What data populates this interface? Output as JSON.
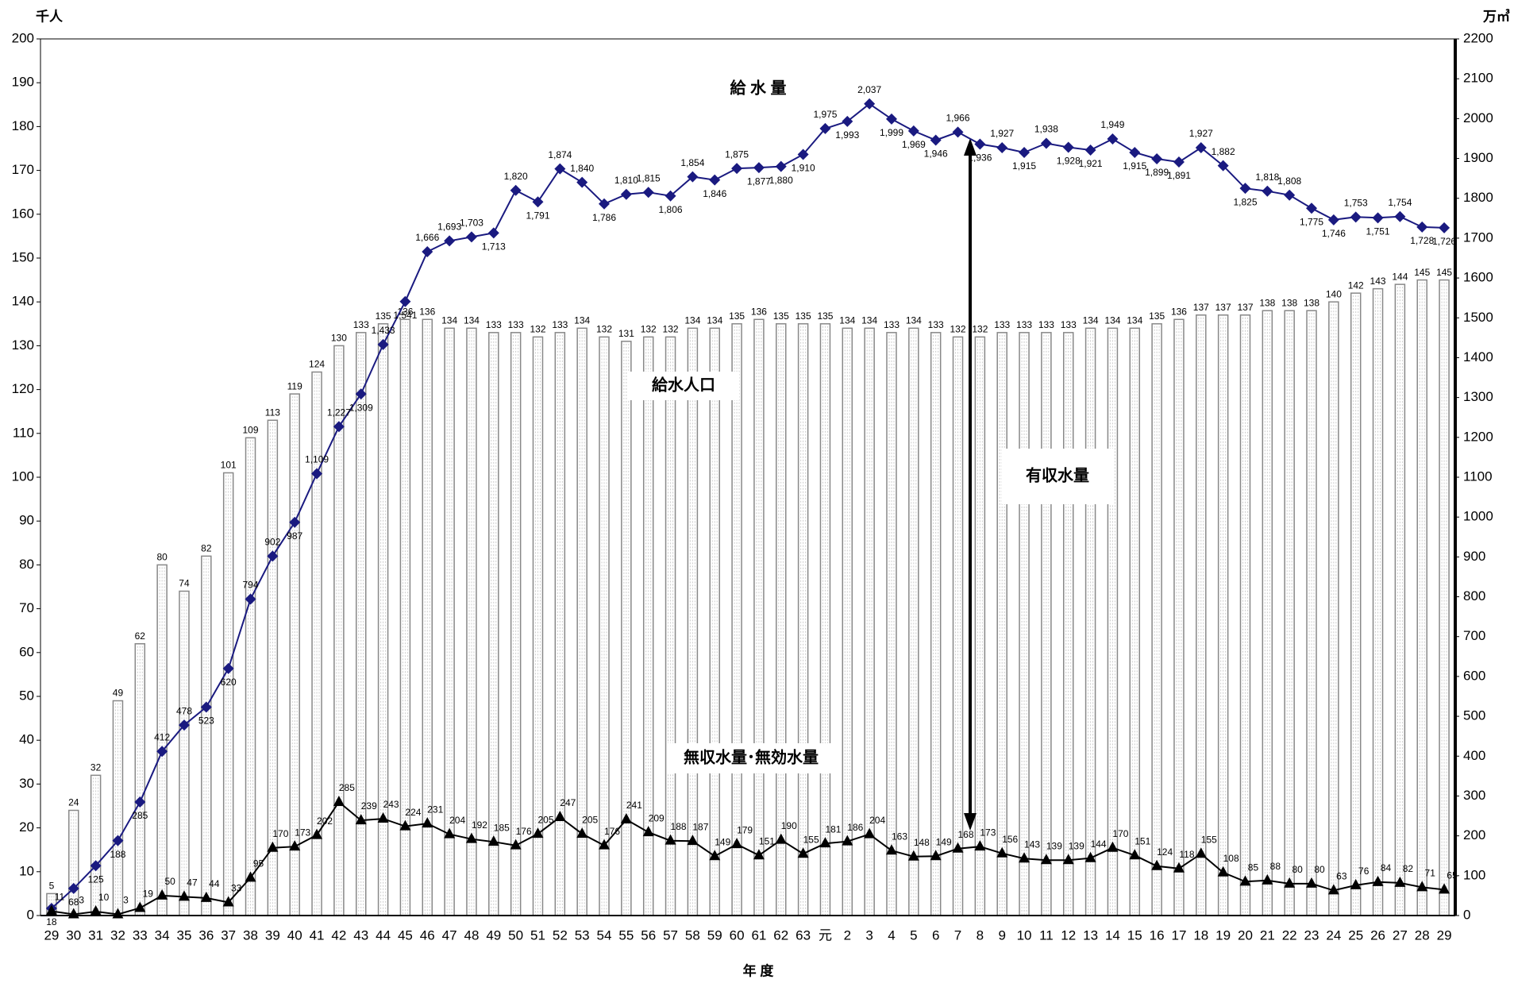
{
  "chart_data": {
    "type": "bar",
    "y_label": "千人",
    "y2_label": "万㎥",
    "x_label": "年 度",
    "annotations": [
      "給 水 量",
      "給水人口",
      "有収水量",
      "無収水量･無効水量"
    ],
    "categories": [
      "29",
      "30",
      "31",
      "32",
      "33",
      "34",
      "35",
      "36",
      "37",
      "38",
      "39",
      "40",
      "41",
      "42",
      "43",
      "44",
      "45",
      "46",
      "47",
      "48",
      "49",
      "50",
      "51",
      "52",
      "53",
      "54",
      "55",
      "56",
      "57",
      "58",
      "59",
      "60",
      "61",
      "62",
      "63",
      "元",
      "2",
      "3",
      "4",
      "5",
      "6",
      "7",
      "8",
      "9",
      "10",
      "11",
      "12",
      "13",
      "14",
      "15",
      "16",
      "17",
      "18",
      "19",
      "20",
      "21",
      "22",
      "23",
      "24",
      "25",
      "26",
      "27",
      "28",
      "29"
    ],
    "ylim": [
      0,
      200
    ],
    "yticks": [
      0,
      10,
      20,
      30,
      40,
      50,
      60,
      70,
      80,
      90,
      100,
      110,
      120,
      130,
      140,
      150,
      160,
      170,
      180,
      190,
      200
    ],
    "y2lim": [
      0,
      2200
    ],
    "y2ticks": [
      0,
      100,
      200,
      300,
      400,
      500,
      600,
      700,
      800,
      900,
      1000,
      1100,
      1200,
      1300,
      1400,
      1500,
      1600,
      1700,
      1800,
      1900,
      2000,
      2100,
      2200
    ],
    "series": [
      {
        "type": "bar",
        "axis": "y",
        "color": "#888888",
        "values": [
          5,
          24,
          32,
          49,
          62,
          80,
          74,
          82,
          101,
          109,
          113,
          119,
          124,
          130,
          133,
          135,
          136,
          136,
          134,
          134,
          133,
          133,
          132,
          133,
          134,
          132,
          131,
          132,
          132,
          134,
          134,
          135,
          136,
          135,
          135,
          135,
          134,
          134,
          133,
          134,
          133,
          132,
          132,
          133,
          133,
          133,
          133,
          134,
          134,
          134,
          135,
          136,
          137,
          137,
          137,
          138,
          138,
          138,
          140,
          142,
          143,
          144,
          145,
          145
        ]
      },
      {
        "type": "line",
        "axis": "y2",
        "color": "#1a1a80",
        "marker": "diamond",
        "values": [
          18,
          68,
          125,
          188,
          285,
          412,
          478,
          523,
          620,
          794,
          902,
          987,
          1109,
          1227,
          1309,
          1433,
          1541,
          1666,
          1693,
          1703,
          1713,
          1820,
          1791,
          1874,
          1840,
          1786,
          1810,
          1815,
          1806,
          1854,
          1846,
          1875,
          1877,
          1880,
          1910,
          1975,
          1993,
          2037,
          1999,
          1969,
          1946,
          1966,
          1936,
          1927,
          1915,
          1938,
          1928,
          1921,
          1949,
          1915,
          1899,
          1891,
          1927,
          1882,
          1825,
          1818,
          1808,
          1775,
          1746,
          1753,
          1751,
          1754,
          1728,
          1726
        ],
        "value_labels": [
          "18",
          "68",
          "125",
          "188",
          "285",
          "412",
          "478",
          "523",
          "620",
          "794",
          "902",
          "987",
          "1,109",
          "1,227",
          "1,309",
          "1,433",
          "1,541",
          "1,666",
          "1,693",
          "1,703",
          "1,713",
          "1,820",
          "1,791",
          "1,874",
          "1,840",
          "1,786",
          "1,810",
          "1,815",
          "1,806",
          "1,854",
          "1,846",
          "1,875",
          "1,877",
          "1,880",
          "1,910",
          "1,975",
          "1,993",
          "2,037",
          "1,999",
          "1,969",
          "1,946",
          "1,966",
          "1,936",
          "1,927",
          "1,915",
          "1,938",
          "1,928",
          "1,921",
          "1,949",
          "1,915",
          "1,899",
          "1,891",
          "1,927",
          "1,882",
          "1,825",
          "1,818",
          "1,808",
          "1,775",
          "1,746",
          "1,753",
          "1,751",
          "1,754",
          "1,728",
          "1,726"
        ]
      },
      {
        "type": "line",
        "axis": "y2",
        "color": "#000000",
        "marker": "triangle",
        "values": [
          11,
          3,
          10,
          3,
          19,
          50,
          47,
          44,
          33,
          95,
          170,
          173,
          202,
          285,
          239,
          243,
          224,
          231,
          204,
          192,
          185,
          176,
          205,
          247,
          205,
          176,
          241,
          209,
          188,
          187,
          149,
          179,
          151,
          190,
          155,
          181,
          186,
          204,
          163,
          148,
          149,
          168,
          173,
          156,
          143,
          139,
          139,
          144,
          170,
          151,
          124,
          118,
          155,
          108,
          85,
          88,
          80,
          80,
          63,
          76,
          84,
          82,
          71,
          65
        ]
      }
    ]
  }
}
